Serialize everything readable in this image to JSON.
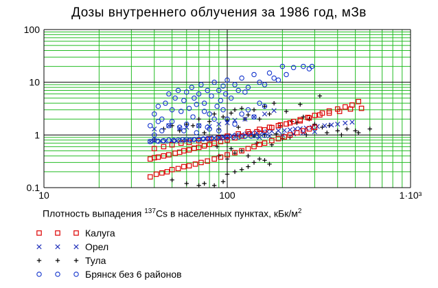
{
  "chart_data": {
    "type": "scatter",
    "title": "Дозы внутреннего облучения за 1986 год, мЗв",
    "xlabel": {
      "pre": "Плотность выпадения ",
      "sup": "137",
      "mid": "Cs  в населенных пунктах, кБк/м",
      "sup2": "2"
    },
    "x_scale": "log",
    "y_scale": "log",
    "xlim": [
      10,
      1000
    ],
    "ylim": [
      0.1,
      100
    ],
    "x_ticks": [
      {
        "v": 10,
        "label": "10"
      },
      {
        "v": 100,
        "label": "100"
      },
      {
        "v": 1000,
        "label": "1·10³"
      }
    ],
    "y_ticks": [
      {
        "v": 0.1,
        "label": "0.1"
      },
      {
        "v": 1,
        "label": "1"
      },
      {
        "v": 10,
        "label": "10"
      },
      {
        "v": 100,
        "label": "100"
      }
    ],
    "grid": true,
    "legend_placement": "below",
    "series": [
      {
        "name": "Калуга",
        "marker": "square",
        "color": "#dd0000",
        "points": [
          [
            38,
            0.35
          ],
          [
            40,
            0.37
          ],
          [
            42,
            0.38
          ],
          [
            45,
            0.4
          ],
          [
            48,
            0.42
          ],
          [
            52,
            0.45
          ],
          [
            55,
            0.47
          ],
          [
            58,
            0.5
          ],
          [
            62,
            0.52
          ],
          [
            66,
            0.56
          ],
          [
            70,
            0.58
          ],
          [
            75,
            0.62
          ],
          [
            80,
            0.66
          ],
          [
            85,
            0.7
          ],
          [
            92,
            0.75
          ],
          [
            100,
            0.8
          ],
          [
            110,
            0.88
          ],
          [
            120,
            0.95
          ],
          [
            132,
            1.05
          ],
          [
            145,
            1.15
          ],
          [
            160,
            1.25
          ],
          [
            175,
            1.38
          ],
          [
            190,
            1.5
          ],
          [
            210,
            1.62
          ],
          [
            230,
            1.8
          ],
          [
            250,
            1.95
          ],
          [
            275,
            2.15
          ],
          [
            300,
            2.35
          ],
          [
            330,
            2.6
          ],
          [
            360,
            2.85
          ],
          [
            400,
            3.1
          ],
          [
            440,
            3.4
          ],
          [
            480,
            3.7
          ],
          [
            520,
            4.3
          ],
          [
            38,
            0.16
          ],
          [
            41,
            0.18
          ],
          [
            44,
            0.19
          ],
          [
            47,
            0.2
          ],
          [
            50,
            0.22
          ],
          [
            54,
            0.23
          ],
          [
            58,
            0.25
          ],
          [
            62,
            0.26
          ],
          [
            67,
            0.28
          ],
          [
            72,
            0.3
          ],
          [
            78,
            0.32
          ],
          [
            85,
            0.35
          ],
          [
            92,
            0.38
          ],
          [
            100,
            0.42
          ],
          [
            110,
            0.46
          ],
          [
            120,
            0.5
          ],
          [
            130,
            0.55
          ],
          [
            140,
            0.6
          ],
          [
            150,
            0.66
          ],
          [
            160,
            0.7
          ],
          [
            175,
            0.78
          ],
          [
            190,
            0.85
          ],
          [
            205,
            0.92
          ],
          [
            220,
            1.0
          ],
          [
            240,
            1.1
          ],
          [
            260,
            1.2
          ],
          [
            280,
            1.3
          ],
          [
            300,
            1.4
          ],
          [
            40,
            0.55
          ],
          [
            45,
            0.6
          ],
          [
            50,
            0.65
          ],
          [
            56,
            0.7
          ],
          [
            62,
            0.72
          ],
          [
            70,
            0.78
          ],
          [
            80,
            0.85
          ],
          [
            90,
            0.88
          ],
          [
            100,
            0.95
          ],
          [
            115,
            1.05
          ],
          [
            130,
            1.15
          ],
          [
            150,
            1.28
          ],
          [
            170,
            1.4
          ],
          [
            195,
            1.55
          ],
          [
            220,
            1.7
          ],
          [
            250,
            1.85
          ],
          [
            280,
            2.1
          ],
          [
            320,
            2.4
          ],
          [
            360,
            2.6
          ],
          [
            410,
            2.8
          ],
          [
            470,
            3.1
          ],
          [
            540,
            3.2
          ]
        ]
      },
      {
        "name": "Орел",
        "marker": "x",
        "color": "#2233bb",
        "points": [
          [
            38,
            0.75
          ],
          [
            40,
            0.78
          ],
          [
            43,
            0.77
          ],
          [
            46,
            0.76
          ],
          [
            50,
            0.78
          ],
          [
            53,
            0.77
          ],
          [
            57,
            0.79
          ],
          [
            60,
            0.8
          ],
          [
            64,
            0.8
          ],
          [
            68,
            0.82
          ],
          [
            72,
            0.84
          ],
          [
            76,
            0.85
          ],
          [
            80,
            0.85
          ],
          [
            85,
            0.88
          ],
          [
            90,
            0.9
          ],
          [
            95,
            0.92
          ],
          [
            100,
            0.95
          ],
          [
            106,
            0.97
          ],
          [
            112,
            1.0
          ],
          [
            120,
            1.02
          ],
          [
            128,
            1.05
          ],
          [
            136,
            1.08
          ],
          [
            145,
            1.1
          ],
          [
            155,
            1.12
          ],
          [
            165,
            1.15
          ],
          [
            175,
            1.18
          ],
          [
            190,
            1.2
          ],
          [
            205,
            1.22
          ],
          [
            220,
            1.25
          ],
          [
            235,
            1.3
          ],
          [
            250,
            1.32
          ],
          [
            270,
            1.35
          ],
          [
            290,
            1.4
          ],
          [
            310,
            1.45
          ],
          [
            340,
            1.5
          ],
          [
            370,
            1.55
          ],
          [
            400,
            1.6
          ],
          [
            440,
            1.68
          ],
          [
            480,
            1.75
          ],
          [
            60,
            1.4
          ],
          [
            70,
            1.5
          ],
          [
            80,
            1.45
          ],
          [
            90,
            1.6
          ],
          [
            100,
            1.7
          ],
          [
            110,
            1.9
          ],
          [
            125,
            2.0
          ],
          [
            140,
            2.2
          ],
          [
            160,
            2.5
          ],
          [
            180,
            2.9
          ],
          [
            150,
            0.9
          ],
          [
            170,
            0.95
          ],
          [
            200,
            1.0
          ],
          [
            230,
            1.05
          ],
          [
            260,
            1.1
          ],
          [
            300,
            1.15
          ],
          [
            40,
            1.3
          ],
          [
            48,
            1.5
          ],
          [
            55,
            1.35
          ]
        ]
      },
      {
        "name": "Тула",
        "marker": "plus",
        "color": "#000000",
        "points": [
          [
            40,
            0.8
          ],
          [
            45,
            1.3
          ],
          [
            50,
            1.5
          ],
          [
            55,
            1.2
          ],
          [
            60,
            1.6
          ],
          [
            65,
            1.5
          ],
          [
            70,
            2.0
          ],
          [
            75,
            1.1
          ],
          [
            80,
            1.8
          ],
          [
            85,
            2.5
          ],
          [
            90,
            1.3
          ],
          [
            95,
            2.2
          ],
          [
            100,
            1.9
          ],
          [
            105,
            2.6
          ],
          [
            110,
            3.0
          ],
          [
            115,
            1.4
          ],
          [
            120,
            3.2
          ],
          [
            125,
            2.0
          ],
          [
            130,
            2.4
          ],
          [
            140,
            3.0
          ],
          [
            150,
            2.0
          ],
          [
            160,
            3.5
          ],
          [
            170,
            2.5
          ],
          [
            180,
            4.0
          ],
          [
            195,
            1.5
          ],
          [
            210,
            2.8
          ],
          [
            225,
            1.8
          ],
          [
            240,
            1.7
          ],
          [
            260,
            2.2
          ],
          [
            280,
            2.0
          ],
          [
            300,
            1.6
          ],
          [
            330,
            1.4
          ],
          [
            360,
            1.5
          ],
          [
            400,
            1.2
          ],
          [
            450,
            1.3
          ],
          [
            500,
            1.2
          ],
          [
            600,
            1.3
          ],
          [
            320,
            5.5
          ],
          [
            250,
            3.8
          ],
          [
            90,
            0.4
          ],
          [
            100,
            0.35
          ],
          [
            110,
            0.45
          ],
          [
            120,
            0.5
          ],
          [
            130,
            0.4
          ],
          [
            140,
            0.3
          ],
          [
            150,
            0.35
          ],
          [
            160,
            0.33
          ],
          [
            170,
            0.28
          ],
          [
            50,
            0.14
          ],
          [
            60,
            0.12
          ],
          [
            70,
            0.11
          ],
          [
            75,
            0.12
          ],
          [
            85,
            0.11
          ],
          [
            95,
            0.13
          ],
          [
            100,
            0.18
          ],
          [
            110,
            0.2
          ],
          [
            120,
            0.22
          ],
          [
            130,
            0.25
          ],
          [
            88,
            0.6
          ],
          [
            105,
            0.55
          ],
          [
            145,
            0.7
          ],
          [
            175,
            0.65
          ],
          [
            200,
            0.85
          ],
          [
            220,
            0.9
          ],
          [
            270,
            1.0
          ],
          [
            350,
            1.1
          ],
          [
            420,
            1.0
          ],
          [
            520,
            1.1
          ],
          [
            140,
            0.95
          ],
          [
            160,
            1.0
          ],
          [
            185,
            1.05
          ]
        ]
      },
      {
        "name": "Брянск без 6 районов",
        "marker": "circle",
        "color": "#1133cc",
        "points": [
          [
            38,
            0.75
          ],
          [
            40,
            0.8
          ],
          [
            42,
            0.76
          ],
          [
            45,
            0.78
          ],
          [
            48,
            0.8
          ],
          [
            51,
            0.79
          ],
          [
            54,
            0.8
          ],
          [
            57,
            0.81
          ],
          [
            60,
            0.82
          ],
          [
            63,
            0.8
          ],
          [
            66,
            0.82
          ],
          [
            70,
            0.83
          ],
          [
            74,
            0.84
          ],
          [
            78,
            0.85
          ],
          [
            82,
            0.86
          ],
          [
            88,
            0.87
          ],
          [
            94,
            0.88
          ],
          [
            100,
            0.9
          ],
          [
            108,
            0.91
          ],
          [
            116,
            0.92
          ],
          [
            125,
            0.94
          ],
          [
            135,
            0.95
          ],
          [
            145,
            0.96
          ],
          [
            160,
            0.98
          ],
          [
            38,
            1.5
          ],
          [
            40,
            2.5
          ],
          [
            42,
            3.5
          ],
          [
            44,
            2.0
          ],
          [
            46,
            4.0
          ],
          [
            48,
            6.0
          ],
          [
            50,
            3.0
          ],
          [
            52,
            5.0
          ],
          [
            54,
            7.0
          ],
          [
            56,
            2.8
          ],
          [
            58,
            4.5
          ],
          [
            60,
            6.5
          ],
          [
            62,
            3.2
          ],
          [
            64,
            8.0
          ],
          [
            66,
            5.0
          ],
          [
            68,
            3.8
          ],
          [
            70,
            6.0
          ],
          [
            72,
            9.0
          ],
          [
            75,
            4.0
          ],
          [
            78,
            7.0
          ],
          [
            80,
            2.5
          ],
          [
            82,
            5.5
          ],
          [
            85,
            10.0
          ],
          [
            88,
            3.5
          ],
          [
            90,
            7.0
          ],
          [
            92,
            4.5
          ],
          [
            95,
            8.5
          ],
          [
            98,
            6.0
          ],
          [
            100,
            11.0
          ],
          [
            105,
            5.0
          ],
          [
            110,
            9.0
          ],
          [
            115,
            7.0
          ],
          [
            120,
            12.0
          ],
          [
            125,
            6.5
          ],
          [
            130,
            8.0
          ],
          [
            140,
            14.0
          ],
          [
            150,
            10.0
          ],
          [
            160,
            9.0
          ],
          [
            170,
            15.0
          ],
          [
            180,
            12.0
          ],
          [
            190,
            11.0
          ],
          [
            200,
            20.0
          ],
          [
            210,
            14.0
          ],
          [
            230,
            19.0
          ],
          [
            260,
            20.0
          ],
          [
            280,
            18.0
          ],
          [
            290,
            20.0
          ],
          [
            40,
            1.0
          ],
          [
            44,
            1.2
          ],
          [
            50,
            1.8
          ],
          [
            55,
            1.4
          ],
          [
            60,
            1.6
          ],
          [
            65,
            2.2
          ],
          [
            70,
            1.5
          ],
          [
            75,
            2.8
          ],
          [
            80,
            1.3
          ],
          [
            85,
            2.0
          ],
          [
            90,
            1.2
          ],
          [
            95,
            3.0
          ],
          [
            100,
            2.0
          ],
          [
            110,
            1.6
          ],
          [
            120,
            2.5
          ],
          [
            130,
            3.0
          ],
          [
            140,
            2.2
          ],
          [
            150,
            4.0
          ],
          [
            160,
            3.5
          ],
          [
            42,
            1.8
          ],
          [
            48,
            1.5
          ],
          [
            58,
            1.2
          ],
          [
            68,
            1.1
          ],
          [
            78,
            1.4
          ]
        ]
      }
    ]
  }
}
